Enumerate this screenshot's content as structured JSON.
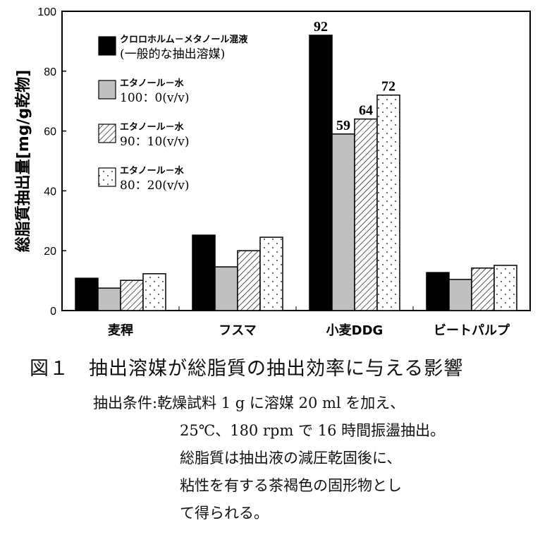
{
  "chart_data": {
    "type": "bar",
    "ylabel": "総脂質抽出量[mg/g乾物]",
    "ylim": [
      0,
      100
    ],
    "yticks": [
      0,
      20,
      40,
      60,
      80,
      100
    ],
    "categories": [
      "麦稈",
      "フスマ",
      "小麦DDG",
      "ビートパルプ"
    ],
    "series": [
      {
        "name": "クロロホルム－メタノール混液",
        "name2": "(一般的な抽出溶媒)",
        "pattern": "solid",
        "values": [
          10.8,
          25.2,
          92,
          12.7
        ]
      },
      {
        "name": "エタノール－水",
        "name2": "100：0(v/v)",
        "pattern": "gray",
        "values": [
          7.5,
          14.6,
          59,
          10.4
        ]
      },
      {
        "name": "エタノール－水",
        "name2": "90：10(v/v)",
        "pattern": "hatch",
        "values": [
          10.1,
          20.0,
          64,
          14.2
        ]
      },
      {
        "name": "エタノール－水",
        "name2": "80：20(v/v)",
        "pattern": "dots",
        "values": [
          12.3,
          24.5,
          72,
          15.1
        ]
      }
    ],
    "data_labels": [
      {
        "category": "小麦DDG",
        "series": 0,
        "text": "92"
      },
      {
        "category": "小麦DDG",
        "series": 1,
        "text": "59"
      },
      {
        "category": "小麦DDG",
        "series": 2,
        "text": "64"
      },
      {
        "category": "小麦DDG",
        "series": 3,
        "text": "72"
      }
    ],
    "legend": "top-left",
    "grid": false
  },
  "caption": "図１　抽出溶媒が総脂質の抽出効率に与える影響",
  "conditions": {
    "label": "抽出条件:",
    "lines": [
      "乾燥試料 1 g に溶媒 20 ml を加え、",
      "25℃、180 rpm で 16 時間振盪抽出。",
      "総脂質は抽出液の減圧乾固後に、",
      "粘性を有する茶褐色の固形物とし",
      "て得られる。"
    ]
  },
  "colors": {
    "gray": "#c0c0c0",
    "black": "#000000"
  }
}
